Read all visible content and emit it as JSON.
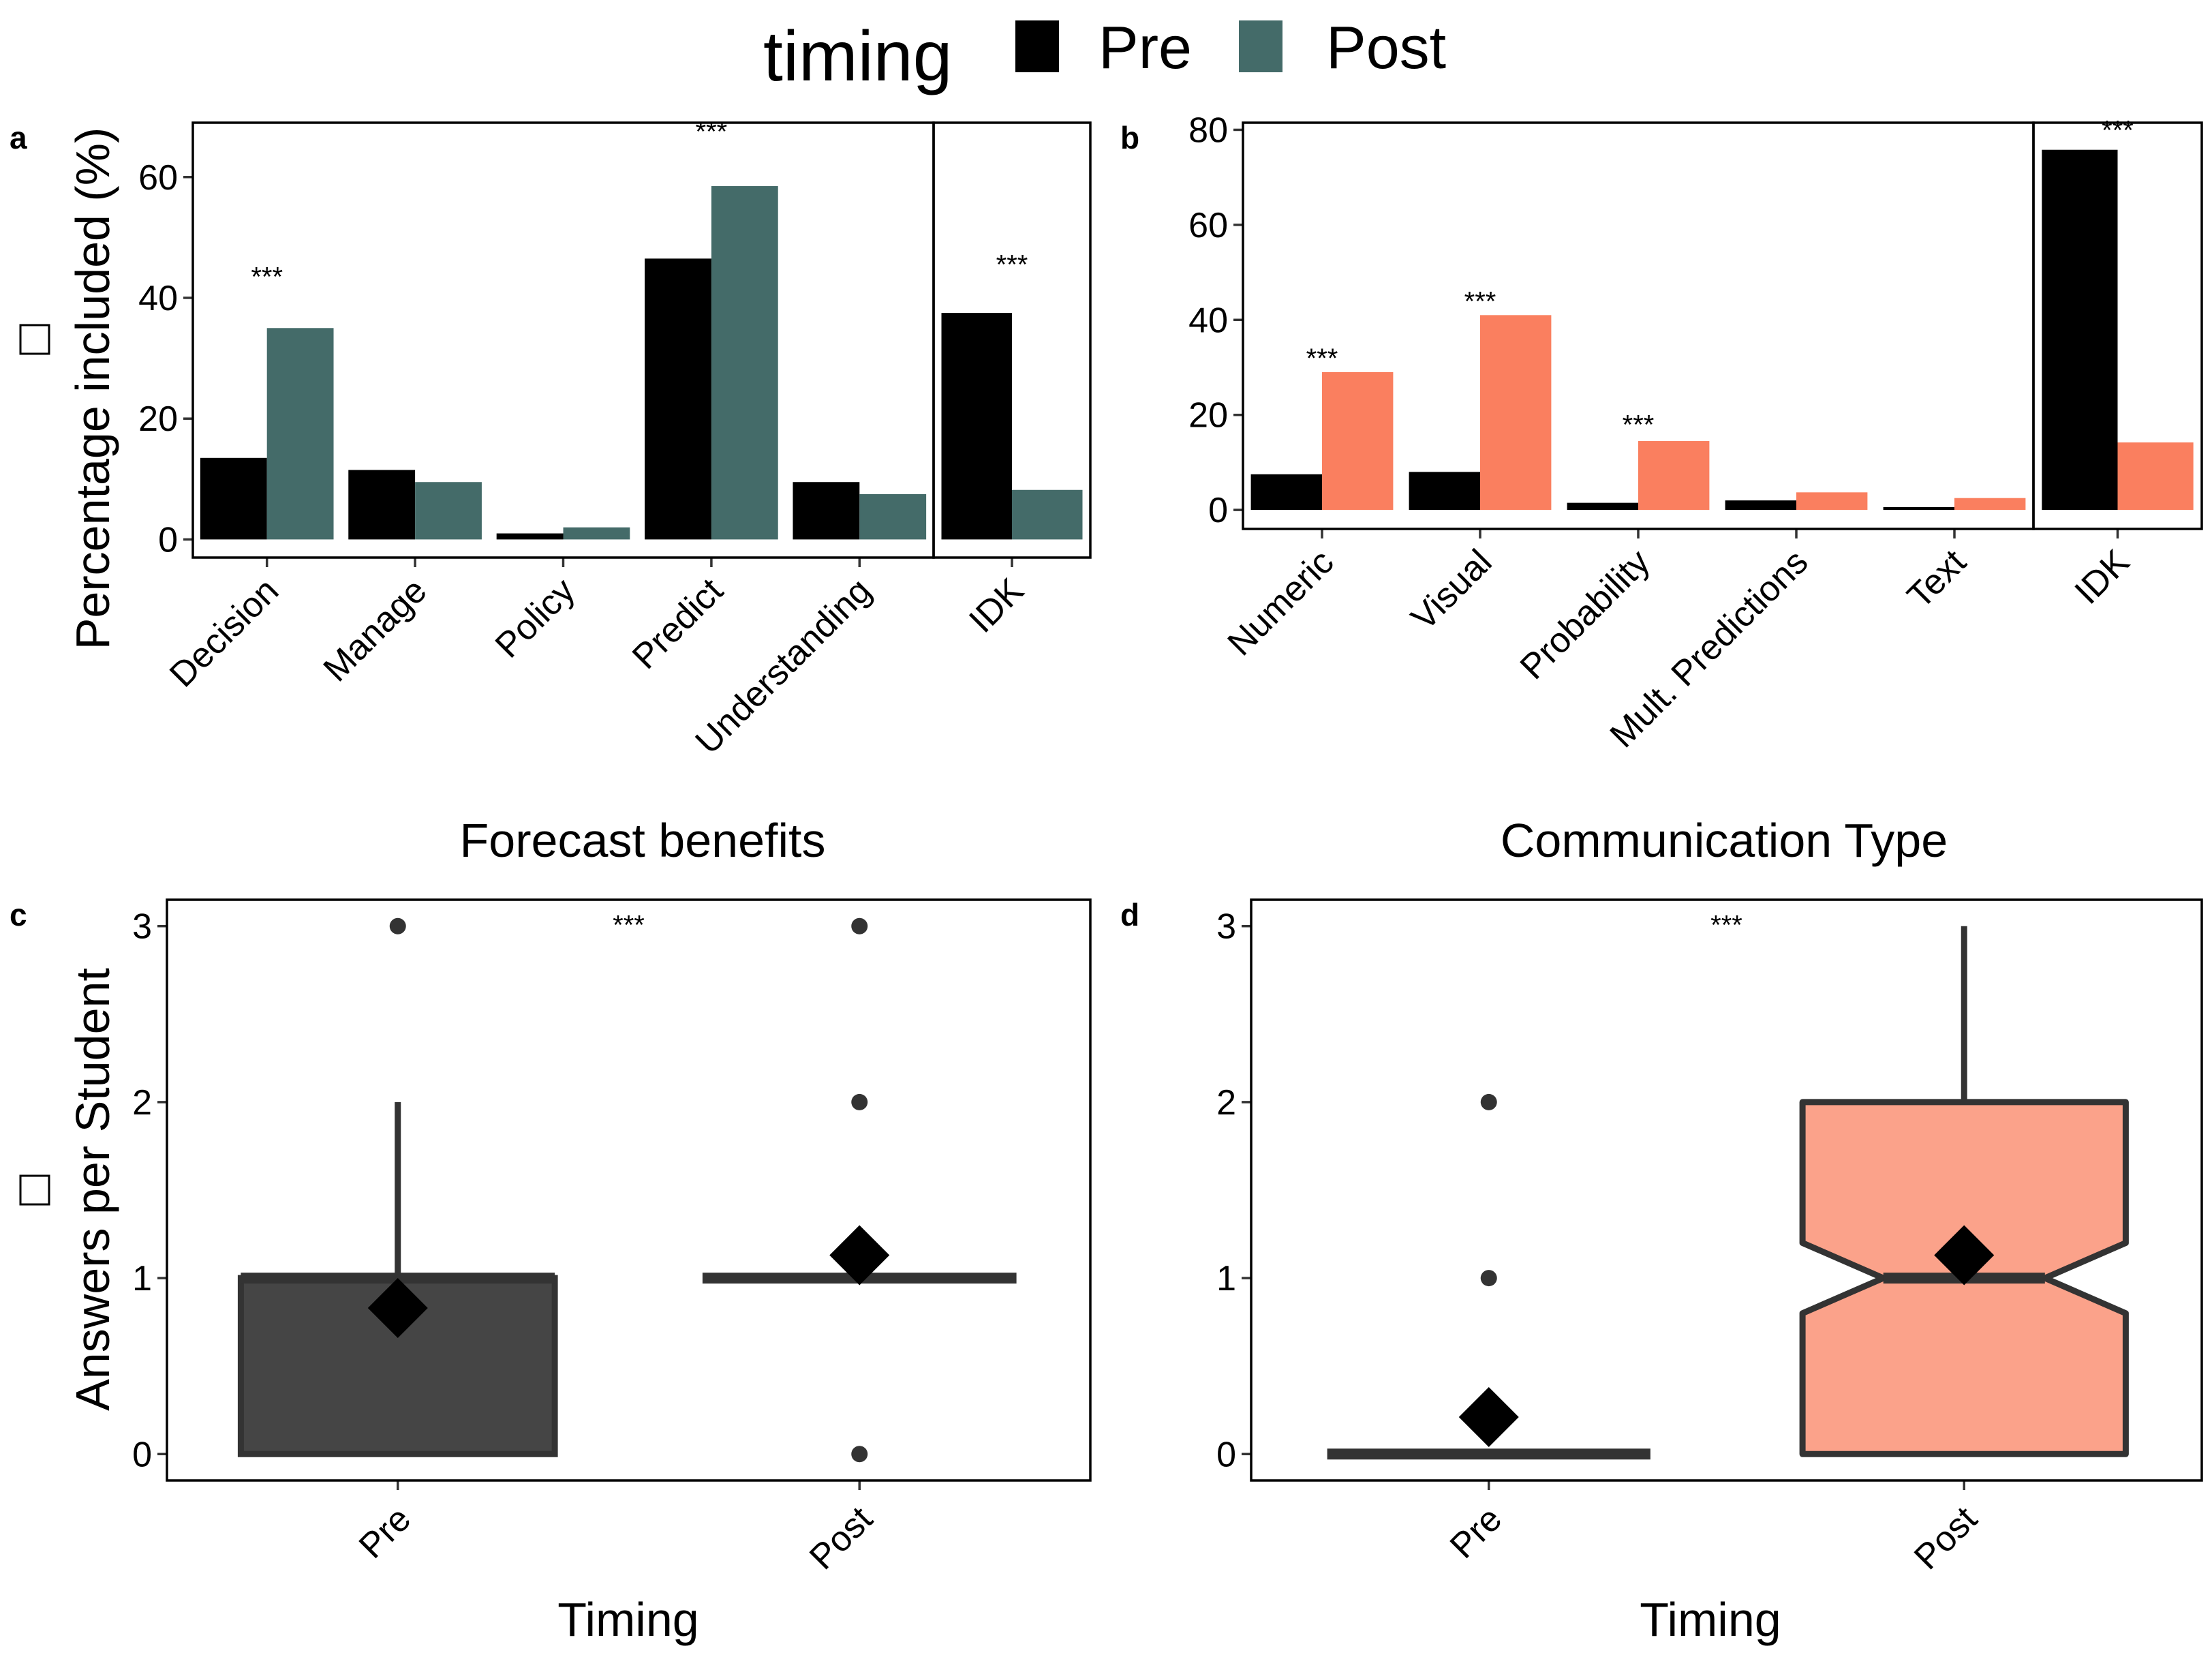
{
  "legend": {
    "title": "timing",
    "items": [
      {
        "label": "Pre",
        "color": "#000000"
      },
      {
        "label": "Post",
        "color": "#446b69"
      }
    ]
  },
  "chart_data": [
    {
      "panel": "a",
      "type": "bar",
      "xlabel": "Forecast benefits",
      "ylabel": "Percentage included (%)",
      "ylim": [
        -3,
        69
      ],
      "yticks": [
        0,
        20,
        40,
        60
      ],
      "categories": [
        "Decision",
        "Manage",
        "Policy",
        "Predict",
        "Understanding"
      ],
      "series": [
        {
          "name": "Pre",
          "color": "#000000",
          "values": [
            13.5,
            11.5,
            1.0,
            46.5,
            9.5
          ]
        },
        {
          "name": "Post",
          "color": "#446b69",
          "values": [
            35.0,
            9.5,
            2.0,
            58.5,
            7.5
          ]
        }
      ],
      "significance": [
        {
          "category": "Decision",
          "label": "***",
          "y": 42
        },
        {
          "category": "Predict",
          "label": "***",
          "y": 66
        }
      ],
      "facet": {
        "categories": [
          "IDK"
        ],
        "series_values": [
          [
            37.5
          ],
          [
            8.2
          ]
        ],
        "significance": [
          {
            "category": "IDK",
            "label": "***",
            "y": 44
          }
        ]
      },
      "grid": false
    },
    {
      "panel": "b",
      "type": "bar",
      "xlabel": "Communication Type",
      "ylabel": "",
      "ylim": [
        -4,
        81.5
      ],
      "yticks": [
        0,
        20,
        40,
        60,
        80
      ],
      "categories": [
        "Numeric",
        "Visual",
        "Probability",
        "Mult. Predictions",
        "Text"
      ],
      "series": [
        {
          "name": "Pre",
          "color": "#000000",
          "values": [
            7.5,
            8.0,
            1.5,
            2.0,
            0.6
          ]
        },
        {
          "name": "Post",
          "color": "#fa7f5f",
          "values": [
            29.0,
            41.0,
            14.5,
            3.7,
            2.5
          ]
        }
      ],
      "significance": [
        {
          "category": "Numeric",
          "label": "***",
          "y": 30
        },
        {
          "category": "Visual",
          "label": "***",
          "y": 42
        },
        {
          "category": "Probability",
          "label": "***",
          "y": 16
        }
      ],
      "facet": {
        "categories": [
          "IDK"
        ],
        "series_values": [
          [
            75.8
          ],
          [
            14.2
          ]
        ],
        "significance": [
          {
            "category": "IDK",
            "label": "***",
            "y": 78
          }
        ]
      },
      "grid": false
    },
    {
      "panel": "c",
      "type": "box",
      "xlabel": "Timing",
      "ylabel": "Answers per Student",
      "ylim": [
        -0.15,
        3.15
      ],
      "yticks": [
        0,
        1,
        2,
        3
      ],
      "categories": [
        "Pre",
        "Post"
      ],
      "boxes": [
        {
          "name": "Pre",
          "fill": "#454545",
          "q1": 0,
          "median": 1,
          "q3": 1,
          "whisker_low": 0,
          "whisker_high": 2,
          "mean": 0.83,
          "outliers": [
            3
          ],
          "notched": false
        },
        {
          "name": "Post",
          "fill": "#446b69",
          "q1": 1,
          "median": 1,
          "q3": 1,
          "whisker_low": 1,
          "whisker_high": 1,
          "mean": 1.13,
          "outliers": [
            0,
            2,
            3
          ],
          "notched": false
        }
      ],
      "significance": [
        {
          "label": "***",
          "y": 3.0
        }
      ],
      "grid": false
    },
    {
      "panel": "d",
      "type": "box",
      "xlabel": "Timing",
      "ylabel": "",
      "ylim": [
        -0.15,
        3.15
      ],
      "yticks": [
        0,
        1,
        2,
        3
      ],
      "categories": [
        "Pre",
        "Post"
      ],
      "boxes": [
        {
          "name": "Pre",
          "fill": "#fa7f5f",
          "q1": 0,
          "median": 0,
          "q3": 0,
          "whisker_low": 0,
          "whisker_high": 0,
          "mean": 0.21,
          "outliers": [
            1,
            2
          ],
          "notched": false
        },
        {
          "name": "Post",
          "fill": "#fba28a",
          "q1": 0,
          "median": 1,
          "q3": 2,
          "whisker_low": 0,
          "whisker_high": 3,
          "mean": 1.13,
          "outliers": [],
          "notched": true,
          "notch_low": 0.8,
          "notch_high": 1.2
        },
        {
          "name": "",
          "fill": "",
          "q1": 0,
          "median": 0,
          "q3": 0
        }
      ],
      "significance": [
        {
          "label": "***",
          "y": 3.0
        }
      ],
      "grid": false
    }
  ]
}
